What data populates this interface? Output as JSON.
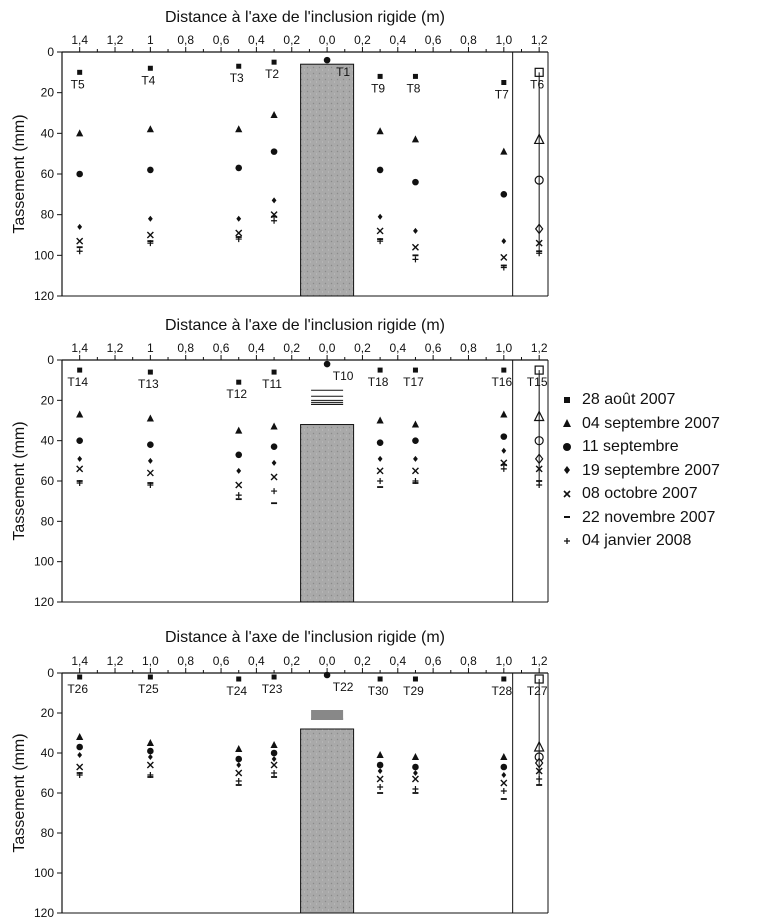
{
  "chart_data": [
    {
      "type": "scatter",
      "title": "Distance à l'axe de l'inclusion rigide (m)",
      "xlabel": "Distance à l'axe de l'inclusion rigide (m)",
      "ylabel": "Tassement (mm)",
      "xlim": [
        1.5,
        1.25
      ],
      "ylim": [
        0,
        120
      ],
      "x_ticks": [
        "1,4",
        "1,2",
        "1",
        "0,8",
        "0,6",
        "0,4",
        "0,2",
        "0,0",
        "0,2",
        "0,4",
        "0,6",
        "0,8",
        "1,0",
        "1,2"
      ],
      "y_ticks": [
        "0",
        "20",
        "40",
        "60",
        "80",
        "100",
        "120"
      ],
      "column_bottom": 6,
      "series": [
        {
          "name": "28 août 2007",
          "values": [
            10,
            8,
            7,
            5,
            4,
            12,
            12,
            15,
            10
          ]
        },
        {
          "name": "04 septembre 2007",
          "values": [
            40,
            38,
            38,
            31,
            null,
            39,
            43,
            49,
            43
          ]
        },
        {
          "name": "11 septembre",
          "values": [
            60,
            58,
            57,
            49,
            null,
            58,
            64,
            70,
            63
          ]
        },
        {
          "name": "19 septembre 2007",
          "values": [
            86,
            82,
            82,
            73,
            null,
            81,
            88,
            93,
            87
          ]
        },
        {
          "name": "08 octobre 2007",
          "values": [
            93,
            90,
            89,
            80,
            null,
            88,
            96,
            101,
            94
          ]
        },
        {
          "name": "22 novembre 2007",
          "values": [
            96,
            93,
            91,
            81,
            null,
            92,
            100,
            105,
            98
          ]
        },
        {
          "name": "04 janvier 2008",
          "values": [
            98,
            94,
            92,
            83,
            null,
            93,
            102,
            106,
            99
          ]
        }
      ],
      "points": [
        {
          "label": "T5",
          "x": -1.4
        },
        {
          "label": "T4",
          "x": -1.0
        },
        {
          "label": "T3",
          "x": -0.5
        },
        {
          "label": "T2",
          "x": -0.3
        },
        {
          "label": "T1",
          "x": 0.0
        },
        {
          "label": "T9",
          "x": 0.3
        },
        {
          "label": "T8",
          "x": 0.5
        },
        {
          "label": "T7",
          "x": 1.0
        },
        {
          "label": "T6",
          "x": 1.2
        }
      ]
    },
    {
      "type": "scatter",
      "title": "Distance à l'axe de l'inclusion rigide (m)",
      "xlabel": "Distance à l'axe de l'inclusion rigide (m)",
      "ylabel": "Tassement (mm)",
      "xlim": [
        1.5,
        1.25
      ],
      "ylim": [
        0,
        120
      ],
      "x_ticks": [
        "1,4",
        "1,2",
        "1",
        "0,8",
        "0,6",
        "0,4",
        "0,2",
        "0,0",
        "0,2",
        "0,4",
        "0,6",
        "0,8",
        "1,0",
        "1,2"
      ],
      "y_ticks": [
        "0",
        "20",
        "40",
        "60",
        "80",
        "100",
        "120"
      ],
      "column_bottom": 32,
      "series": [
        {
          "name": "28 août 2007",
          "values": [
            5,
            6,
            11,
            6,
            2,
            5,
            5,
            5,
            5
          ]
        },
        {
          "name": "04 septembre 2007",
          "values": [
            27,
            29,
            35,
            33,
            15,
            30,
            32,
            27,
            28
          ]
        },
        {
          "name": "11 septembre",
          "values": [
            40,
            42,
            47,
            43,
            18,
            41,
            40,
            38,
            40
          ]
        },
        {
          "name": "19 septembre 2007",
          "values": [
            49,
            50,
            55,
            51,
            20,
            49,
            49,
            45,
            49
          ]
        },
        {
          "name": "08 octobre 2007",
          "values": [
            54,
            56,
            62,
            58,
            21,
            55,
            55,
            51,
            54
          ]
        },
        {
          "name": "22 novembre 2007",
          "values": [
            60,
            61,
            69,
            71,
            22,
            63,
            61,
            52,
            60
          ]
        },
        {
          "name": "04 janvier 2008",
          "values": [
            61,
            62,
            67,
            65,
            22,
            60,
            60,
            54,
            62
          ]
        }
      ],
      "points": [
        {
          "label": "T14",
          "x": -1.4
        },
        {
          "label": "T13",
          "x": -1.0
        },
        {
          "label": "T12",
          "x": -0.5
        },
        {
          "label": "T11",
          "x": -0.3
        },
        {
          "label": "T10",
          "x": 0.0
        },
        {
          "label": "T18",
          "x": 0.3
        },
        {
          "label": "T17",
          "x": 0.5
        },
        {
          "label": "T16",
          "x": 1.0
        },
        {
          "label": "T15",
          "x": 1.2
        }
      ]
    },
    {
      "type": "scatter",
      "title": "Distance à l'axe de l'inclusion rigide (m)",
      "xlabel": "Distance à l'axe de l'inclusion rigide (m)",
      "ylabel": "Tassement (mm)",
      "xlim": [
        1.5,
        1.25
      ],
      "ylim": [
        0,
        120
      ],
      "x_ticks": [
        "1,4",
        "1,2",
        "1,0",
        "0,8",
        "0,6",
        "0,4",
        "0,2",
        "0,0",
        "0,2",
        "0,4",
        "0,6",
        "0,8",
        "1,0",
        "1,2"
      ],
      "y_ticks": [
        "0",
        "20",
        "40",
        "60",
        "80",
        "100",
        "120"
      ],
      "column_bottom": 28,
      "series": [
        {
          "name": "28 août 2007",
          "values": [
            2,
            2,
            3,
            2,
            1,
            3,
            3,
            3,
            3
          ]
        },
        {
          "name": "04 septembre 2007",
          "values": [
            32,
            35,
            38,
            36,
            19,
            41,
            42,
            42,
            37
          ]
        },
        {
          "name": "11 septembre",
          "values": [
            37,
            39,
            43,
            40,
            20,
            46,
            47,
            47,
            42
          ]
        },
        {
          "name": "19 septembre 2007",
          "values": [
            41,
            42,
            46,
            43,
            21,
            49,
            50,
            51,
            45
          ]
        },
        {
          "name": "08 octobre 2007",
          "values": [
            47,
            46,
            50,
            46,
            22,
            53,
            53,
            55,
            49
          ]
        },
        {
          "name": "22 novembre 2007",
          "values": [
            50,
            52,
            56,
            52,
            23,
            60,
            60,
            63,
            56
          ]
        },
        {
          "name": "04 janvier 2008",
          "values": [
            51,
            51,
            54,
            50,
            23,
            57,
            58,
            59,
            53
          ]
        }
      ],
      "points": [
        {
          "label": "T26",
          "x": -1.4
        },
        {
          "label": "T25",
          "x": -1.0
        },
        {
          "label": "T24",
          "x": -0.5
        },
        {
          "label": "T23",
          "x": -0.3
        },
        {
          "label": "T22",
          "x": 0.0
        },
        {
          "label": "T30",
          "x": 0.3
        },
        {
          "label": "T29",
          "x": 0.5
        },
        {
          "label": "T28",
          "x": 1.0
        },
        {
          "label": "T27",
          "x": 1.2
        }
      ]
    }
  ],
  "legend": {
    "placement": "right",
    "items": [
      {
        "label": "28 août 2007",
        "marker": "small-filled-square"
      },
      {
        "label": "04 septembre 2007",
        "marker": "filled-triangle"
      },
      {
        "label": "11 septembre",
        "marker": "filled-circle"
      },
      {
        "label": "19 septembre 2007",
        "marker": "filled-diamond"
      },
      {
        "label": "08 octobre 2007",
        "marker": "x-cross"
      },
      {
        "label": "22 novembre 2007",
        "marker": "dash"
      },
      {
        "label": "04 janvier 2008",
        "marker": "plus"
      }
    ]
  },
  "colors": {
    "ink": "#111111",
    "column_fill": "#a9a9a9",
    "column_texture": "#8a8a8a",
    "background": "#ffffff"
  }
}
